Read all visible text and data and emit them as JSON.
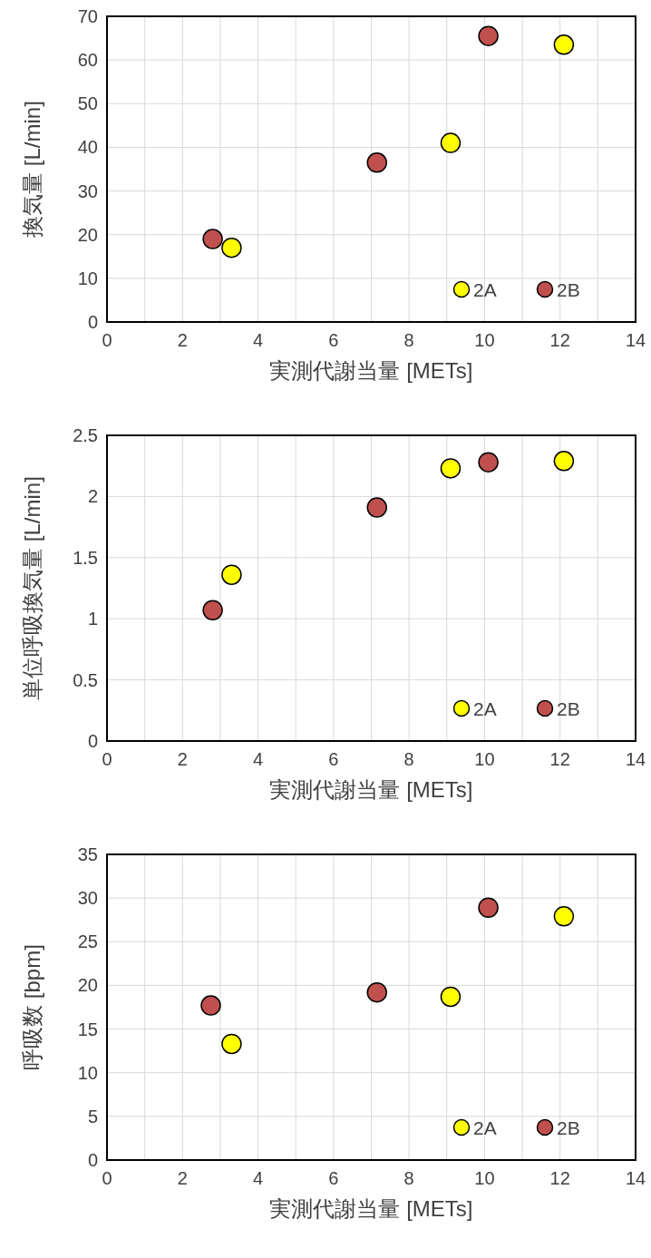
{
  "chart_data": [
    {
      "type": "scatter",
      "xlabel": "実測代謝当量 [METs]",
      "ylabel": "換気量 [L/min]",
      "xlim": [
        0,
        14
      ],
      "ylim": [
        0,
        70
      ],
      "xticks": [
        0,
        {
          "value": 1,
          "label": null
        },
        2,
        {
          "value": 3,
          "label": null
        },
        4,
        {
          "value": 5,
          "label": null
        },
        6,
        {
          "value": 7,
          "label": null
        },
        8,
        {
          "value": 9,
          "label": null
        },
        10,
        {
          "value": 11,
          "label": null
        },
        12,
        {
          "value": 13,
          "label": null
        },
        14
      ],
      "yticks": [
        0,
        10,
        20,
        30,
        40,
        50,
        60,
        70
      ],
      "grid": true,
      "legend": "bottom right",
      "marker": "circle",
      "series": [
        {
          "name": "2A",
          "color": "#ffff00",
          "x": [
            3.3,
            9.1,
            12.1
          ],
          "values": [
            17,
            41,
            63.5
          ]
        },
        {
          "name": "2B",
          "color": "#c0504d",
          "x": [
            2.8,
            7.15,
            10.1
          ],
          "values": [
            19,
            36.5,
            65.5
          ]
        }
      ]
    },
    {
      "type": "scatter",
      "xlabel": "実測代謝当量 [METs]",
      "ylabel": "単位呼吸換気量 [L/min]",
      "xlim": [
        0,
        14
      ],
      "ylim": [
        0,
        2.5
      ],
      "xticks": [
        0,
        {
          "value": 1,
          "label": null
        },
        2,
        {
          "value": 3,
          "label": null
        },
        4,
        {
          "value": 5,
          "label": null
        },
        6,
        {
          "value": 7,
          "label": null
        },
        8,
        {
          "value": 9,
          "label": null
        },
        10,
        {
          "value": 11,
          "label": null
        },
        12,
        {
          "value": 13,
          "label": null
        },
        14
      ],
      "yticks": [
        0,
        0.5,
        1,
        1.5,
        2,
        2.5
      ],
      "grid": true,
      "legend": "bottom right",
      "marker": "circle",
      "series": [
        {
          "name": "2A",
          "color": "#ffff00",
          "x": [
            3.3,
            9.1,
            12.1
          ],
          "values": [
            1.36,
            2.23,
            2.29
          ]
        },
        {
          "name": "2B",
          "color": "#c0504d",
          "x": [
            2.8,
            7.15,
            10.1
          ],
          "values": [
            1.07,
            1.91,
            2.28
          ]
        }
      ]
    },
    {
      "type": "scatter",
      "xlabel": "実測代謝当量 [METs]",
      "ylabel": "呼吸数 [bpm]",
      "xlim": [
        0,
        14
      ],
      "ylim": [
        0,
        35
      ],
      "xticks": [
        0,
        {
          "value": 1,
          "label": null
        },
        2,
        {
          "value": 3,
          "label": null
        },
        4,
        {
          "value": 5,
          "label": null
        },
        6,
        {
          "value": 7,
          "label": null
        },
        8,
        {
          "value": 9,
          "label": null
        },
        10,
        {
          "value": 11,
          "label": null
        },
        12,
        {
          "value": 13,
          "label": null
        },
        14
      ],
      "yticks": [
        0,
        5,
        10,
        15,
        20,
        25,
        30,
        35
      ],
      "grid": true,
      "legend": "bottom right",
      "marker": "circle",
      "series": [
        {
          "name": "2A",
          "color": "#ffff00",
          "x": [
            3.3,
            9.1,
            12.1
          ],
          "values": [
            13.3,
            18.7,
            27.9
          ]
        },
        {
          "name": "2B",
          "color": "#c0504d",
          "x": [
            2.75,
            7.15,
            10.1
          ],
          "values": [
            17.7,
            19.2,
            28.9
          ]
        }
      ]
    }
  ]
}
